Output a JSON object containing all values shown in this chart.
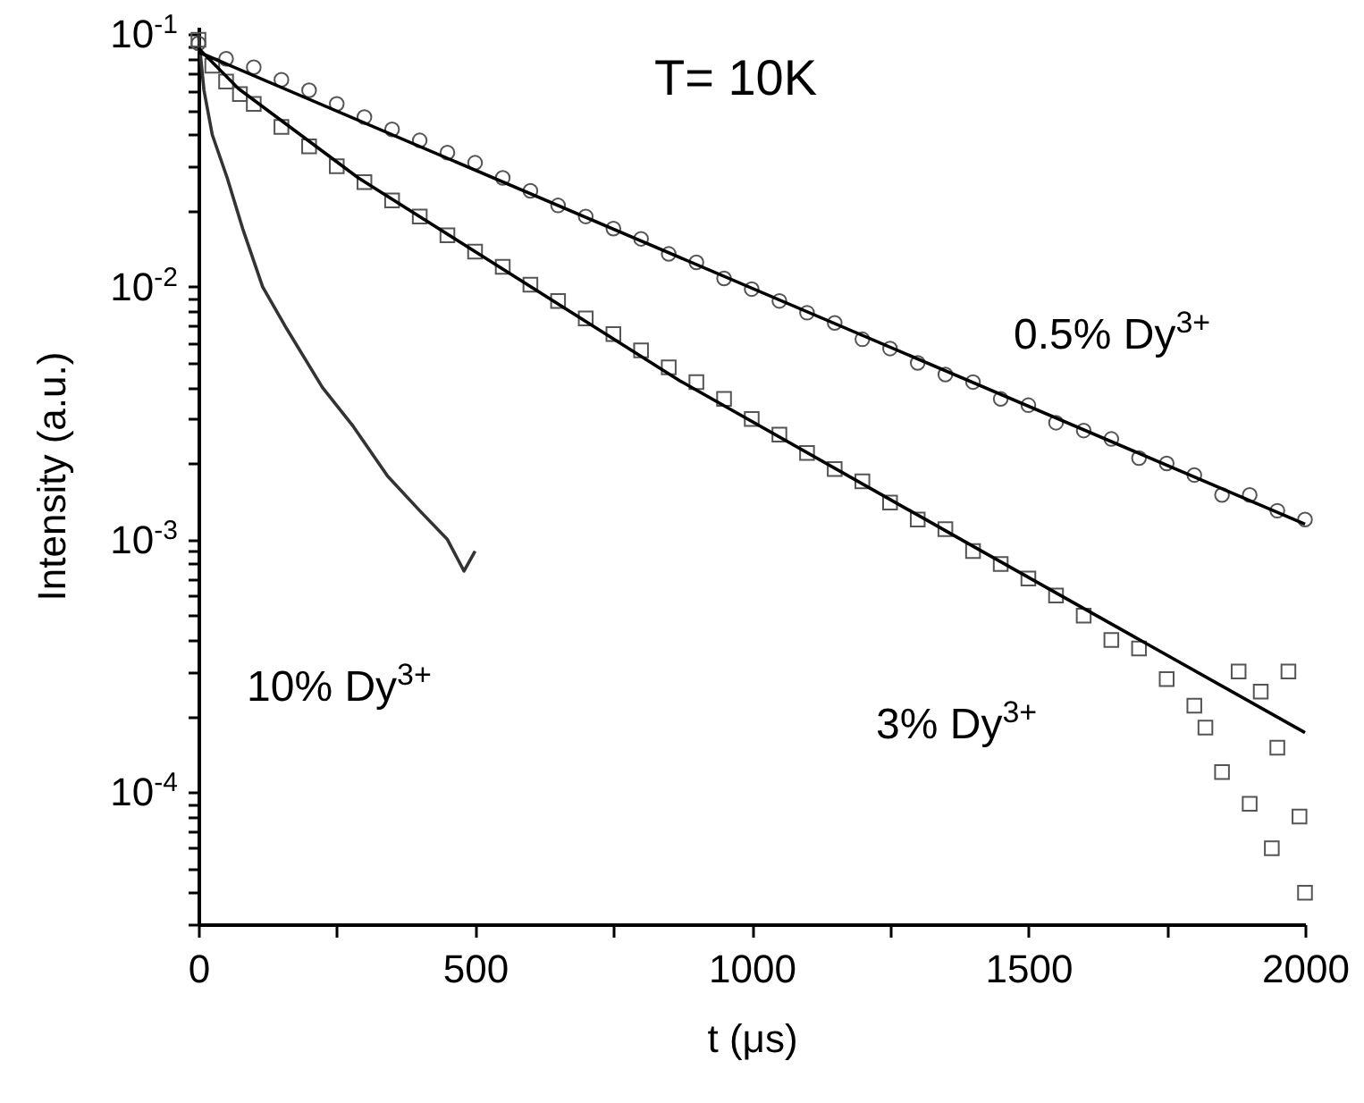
{
  "chart_data": {
    "type": "scatter",
    "xlabel": "t (μs)",
    "ylabel": "Intensity (a.u.)",
    "xlim": [
      0,
      2000
    ],
    "xticks": [
      0,
      {
        "value": 250,
        "label": null
      },
      500,
      {
        "value": 750,
        "label": null
      },
      1000,
      {
        "value": 1250,
        "label": null
      },
      1500,
      {
        "value": 1750,
        "label": null
      },
      2000
    ],
    "ylim": [
      3e-05,
      0.107
    ],
    "log": true,
    "yticks": [
      {
        "value": 3e-05,
        "label": null
      },
      {
        "value": 4e-05,
        "label": null
      },
      {
        "value": 5e-05,
        "label": null
      },
      {
        "value": 6e-05,
        "label": null
      },
      {
        "value": 7e-05,
        "label": null
      },
      {
        "value": 8e-05,
        "label": null
      },
      {
        "value": 9e-05,
        "label": null
      },
      {
        "value": 0.0001,
        "label": "10$^{-4}$"
      },
      {
        "value": 0.0002,
        "label": null
      },
      {
        "value": 0.0003,
        "label": null
      },
      {
        "value": 0.0004,
        "label": null
      },
      {
        "value": 0.0005,
        "label": null
      },
      {
        "value": 0.0006,
        "label": null
      },
      {
        "value": 0.0007,
        "label": null
      },
      {
        "value": 0.0008,
        "label": null
      },
      {
        "value": 0.0009,
        "label": null
      },
      {
        "value": 0.001,
        "label": "10$^{-3}$"
      },
      {
        "value": 0.002,
        "label": null
      },
      {
        "value": 0.003,
        "label": null
      },
      {
        "value": 0.004,
        "label": null
      },
      {
        "value": 0.005,
        "label": null
      },
      {
        "value": 0.006,
        "label": null
      },
      {
        "value": 0.007,
        "label": null
      },
      {
        "value": 0.008,
        "label": null
      },
      {
        "value": 0.009,
        "label": null
      },
      {
        "value": 0.01,
        "label": "10$^{-2}$"
      },
      {
        "value": 0.02,
        "label": null
      },
      {
        "value": 0.03,
        "label": null
      },
      {
        "value": 0.04,
        "label": null
      },
      {
        "value": 0.05,
        "label": null
      },
      {
        "value": 0.06,
        "label": null
      },
      {
        "value": 0.07,
        "label": null
      },
      {
        "value": 0.08,
        "label": null
      },
      {
        "value": 0.09,
        "label": null
      },
      {
        "value": 0.1,
        "label": "10$^{-1}$"
      }
    ],
    "grid": false,
    "series": [
      {
        "marker": "circle",
        "color": "#555555",
        "x": [
          0,
          50,
          100,
          150,
          200,
          250,
          300,
          350,
          400,
          450,
          500,
          550,
          600,
          650,
          700,
          750,
          800,
          850,
          900,
          950,
          1000,
          1050,
          1100,
          1150,
          1200,
          1250,
          1300,
          1350,
          1400,
          1450,
          1500,
          1550,
          1600,
          1650,
          1700,
          1750,
          1800,
          1850,
          1900,
          1950,
          2000
        ],
        "values": [
          0.092,
          0.08,
          0.074,
          0.066,
          0.06,
          0.053,
          0.047,
          0.042,
          0.038,
          0.034,
          0.031,
          0.027,
          0.024,
          0.021,
          0.019,
          0.017,
          0.0155,
          0.0135,
          0.0125,
          0.0108,
          0.0098,
          0.0088,
          0.0079,
          0.0072,
          0.0062,
          0.0057,
          0.005,
          0.0045,
          0.0042,
          0.0036,
          0.0034,
          0.0029,
          0.0027,
          0.0025,
          0.0021,
          0.002,
          0.0018,
          0.0015,
          0.0015,
          0.0013,
          0.0012
        ]
      },
      {
        "marker": "square",
        "color": "#555555",
        "x": [
          0,
          25,
          50,
          75,
          100,
          150,
          200,
          250,
          300,
          350,
          400,
          450,
          500,
          550,
          600,
          650,
          700,
          750,
          800,
          850,
          900,
          950,
          1000,
          1050,
          1100,
          1150,
          1200,
          1250,
          1300,
          1350,
          1400,
          1450,
          1500,
          1550,
          1600,
          1650,
          1700,
          1750,
          1800,
          1820,
          1850,
          1880,
          1900,
          1920,
          1940,
          1950,
          1970,
          1990,
          2000
        ],
        "values": [
          0.095,
          0.075,
          0.065,
          0.058,
          0.053,
          0.043,
          0.036,
          0.03,
          0.026,
          0.022,
          0.019,
          0.016,
          0.0138,
          0.012,
          0.0102,
          0.0088,
          0.0075,
          0.0065,
          0.0056,
          0.0048,
          0.0042,
          0.0036,
          0.003,
          0.0026,
          0.0022,
          0.0019,
          0.0017,
          0.0014,
          0.0012,
          0.0011,
          0.0009,
          0.0008,
          0.0007,
          0.0006,
          0.0005,
          0.0004,
          0.00037,
          0.00028,
          0.00022,
          0.00018,
          0.00012,
          0.0003,
          9e-05,
          0.00025,
          6e-05,
          0.00015,
          0.0003,
          8e-05,
          4e-05
        ]
      },
      {
        "type": "line",
        "color": "#333333",
        "x": [
          0,
          10,
          25,
          52,
          80,
          116,
          160,
          224,
          280,
          342,
          400,
          450,
          480,
          500
        ],
        "values": [
          0.1,
          0.06,
          0.04,
          0.027,
          0.017,
          0.01,
          0.0068,
          0.004,
          0.0028,
          0.00178,
          0.0013,
          0.001,
          0.00075,
          0.0009
        ]
      },
      {
        "type": "line",
        "color": "#000000",
        "x": [
          0,
          2000
        ],
        "values": [
          0.085,
          0.00115
        ]
      },
      {
        "type": "line",
        "color": "#000000",
        "x": [
          0,
          72,
          289,
          870,
          1400,
          2000
        ],
        "values": [
          0.088,
          0.061,
          0.027,
          0.00425,
          0.00094,
          0.000172
        ]
      }
    ],
    "annotations": [
      "T= 10K",
      "0.5% Dy$^{3+}$",
      "3% Dy$^{3+}$",
      "10% Dy$^{3+}$"
    ]
  }
}
